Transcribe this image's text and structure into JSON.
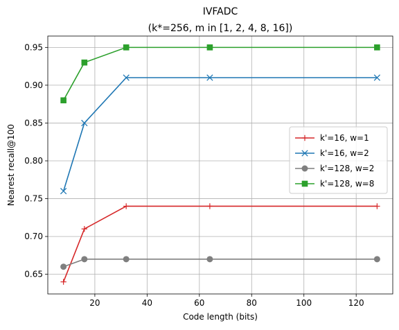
{
  "chart_data": {
    "type": "line",
    "title": "IVFADC",
    "subtitle": "(k*=256, m in [1, 2, 4, 8, 16])",
    "xlabel": "Code length (bits)",
    "ylabel": "Nearest recall@100",
    "xlim": [
      2,
      134
    ],
    "ylim": [
      0.624,
      0.965
    ],
    "xticks": [
      20,
      40,
      60,
      80,
      100,
      120
    ],
    "yticks": [
      0.65,
      0.7,
      0.75,
      0.8,
      0.85,
      0.9,
      0.95
    ],
    "grid": true,
    "legend_position": "center-right",
    "x": [
      8,
      16,
      32,
      64,
      128
    ],
    "series": [
      {
        "name": "k'=16, w=1",
        "color": "#d62728",
        "marker": "plus",
        "values": [
          0.64,
          0.71,
          0.74,
          0.74,
          0.74
        ]
      },
      {
        "name": "k'=16, w=2",
        "color": "#1f77b4",
        "marker": "x",
        "values": [
          0.76,
          0.85,
          0.91,
          0.91,
          0.91
        ]
      },
      {
        "name": "k'=128, w=2",
        "color": "#7f7f7f",
        "marker": "circle",
        "values": [
          0.66,
          0.67,
          0.67,
          0.67,
          0.67
        ]
      },
      {
        "name": "k'=128, w=8",
        "color": "#2ca02c",
        "marker": "square",
        "values": [
          0.88,
          0.93,
          0.95,
          0.95,
          0.95
        ]
      }
    ]
  }
}
